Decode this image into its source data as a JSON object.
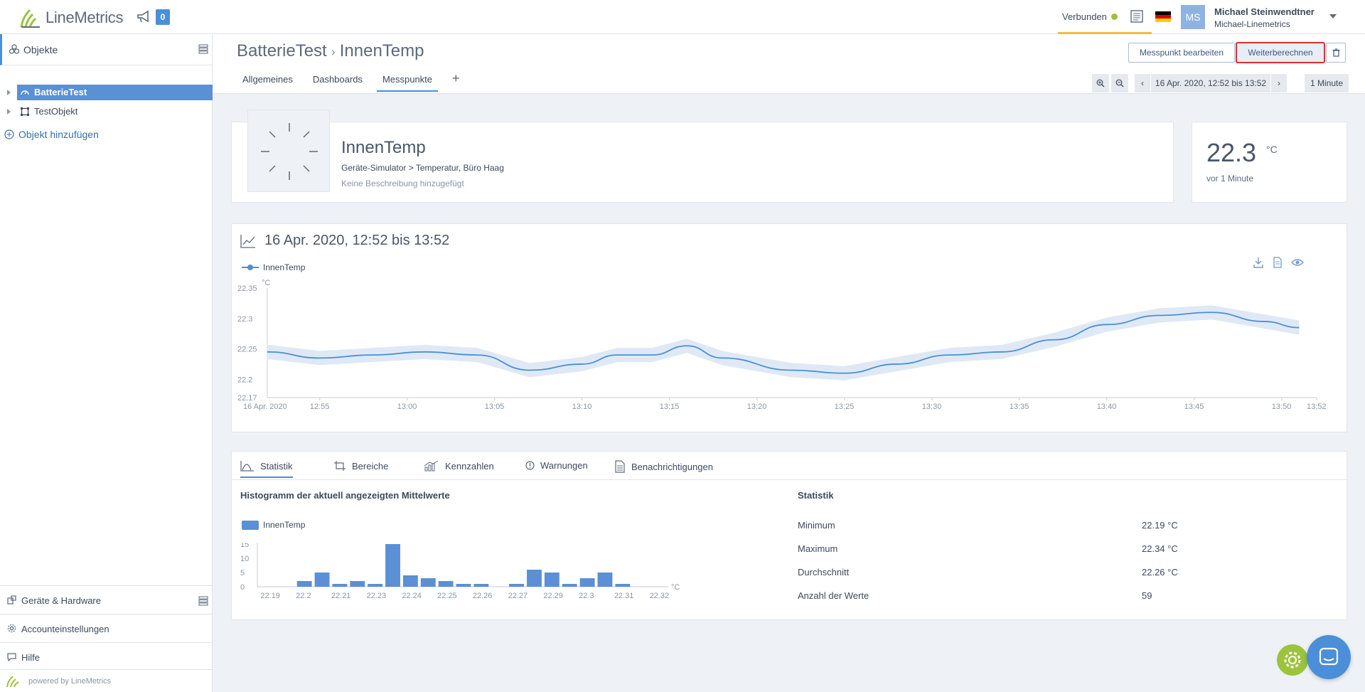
{
  "app": {
    "logo_text": "LineMetrics",
    "notifications_count": "0"
  },
  "topbar": {
    "connection_status": "Verbunden",
    "user_initials": "MS",
    "user_name": "Michael Steinwendtner",
    "user_account": "Michael-Linemetrics"
  },
  "sidebar": {
    "header_label": "Objekte",
    "tree": [
      {
        "label": "BatterieTest",
        "selected": true
      },
      {
        "label": "TestObjekt",
        "selected": false
      }
    ],
    "add_object": "Objekt hinzufügen",
    "bottom": {
      "devices": "Geräte & Hardware",
      "account": "Accounteinstellungen",
      "help": "Hilfe"
    },
    "powered_by": "powered by LineMetrics"
  },
  "header": {
    "breadcrumb_parent": "BatterieTest",
    "breadcrumb_current": "InnenTemp",
    "tabs": [
      "Allgemeines",
      "Dashboards",
      "Messpunkte"
    ],
    "active_tab": "Messpunkte",
    "edit_button": "Messpunkt bearbeiten",
    "recalc_button": "Weiterberechnen",
    "time_range": "16 Apr. 2020, 12:52 bis 13:52",
    "resolution": "1 Minute"
  },
  "measurement": {
    "title": "InnenTemp",
    "path": "Geräte-Simulator > Temperatur, Büro Haag",
    "description": "Keine Beschreibung hinzugefügt",
    "current_value": "22.3",
    "unit": "°C",
    "ago": "vor 1 Minute"
  },
  "line_chart": {
    "title": "16 Apr. 2020, 12:52 bis 13:52",
    "legend": "InnenTemp",
    "ylabel": "°C",
    "ymin_label": "22.17",
    "y_ticks": [
      "22.35",
      "22.3",
      "22.25",
      "22.2"
    ],
    "x_first_label": "16 Apr. 2020",
    "x_ticks": [
      "12:55",
      "13:00",
      "13:05",
      "13:10",
      "13:15",
      "13:20",
      "13:25",
      "13:30",
      "13:35",
      "13:40",
      "13:45",
      "13:50",
      "13:52"
    ]
  },
  "stats_tabs": [
    "Statistik",
    "Bereiche",
    "Kennzahlen",
    "Warnungen",
    "Benachrichtigungen"
  ],
  "histogram_title": "Histogramm der aktuell angezeigten Mittelwerte",
  "statistics": {
    "title": "Statistik",
    "rows": [
      {
        "label": "Minimum",
        "value": "22.19 °C"
      },
      {
        "label": "Maximum",
        "value": "22.34 °C"
      },
      {
        "label": "Durchschnitt",
        "value": "22.26 °C"
      },
      {
        "label": "Anzahl der Werte",
        "value": "59"
      }
    ]
  },
  "chart_data": [
    {
      "type": "line",
      "title": "16 Apr. 2020, 12:52 bis 13:52",
      "ylabel": "°C",
      "ylim": [
        22.17,
        22.35
      ],
      "series": [
        {
          "name": "InnenTemp",
          "x_minutes_from_1252": [
            0,
            3,
            6,
            9,
            12,
            15,
            18,
            20,
            22,
            24,
            26,
            30,
            33,
            36,
            39,
            42,
            45,
            48,
            51,
            54,
            57,
            59
          ],
          "values": [
            22.245,
            22.235,
            22.24,
            22.245,
            22.24,
            22.215,
            22.225,
            22.24,
            22.24,
            22.255,
            22.235,
            22.215,
            22.21,
            22.225,
            22.24,
            22.245,
            22.265,
            22.29,
            22.305,
            22.31,
            22.295,
            22.285
          ]
        }
      ],
      "color": "#4a8fd8"
    },
    {
      "type": "bar",
      "title": "Histogramm der aktuell angezeigten Mittelwerte",
      "legend": "InnenTemp",
      "xlabel": "°C",
      "ylim": [
        0,
        15
      ],
      "y_ticks": [
        "15",
        "10",
        "5",
        "0"
      ],
      "x_tick_labels": [
        "22.19",
        "22.2",
        "22.21",
        "22.23",
        "22.24",
        "22.25",
        "22.26",
        "22.27",
        "22.29",
        "22.3",
        "22.31",
        "22.32"
      ],
      "values": [
        0,
        0,
        2,
        5,
        1,
        2,
        1,
        15,
        4,
        3,
        2,
        1,
        1,
        0,
        1,
        6,
        5,
        1,
        3,
        5,
        1,
        0,
        0
      ],
      "color": "#5b8fd6"
    }
  ]
}
